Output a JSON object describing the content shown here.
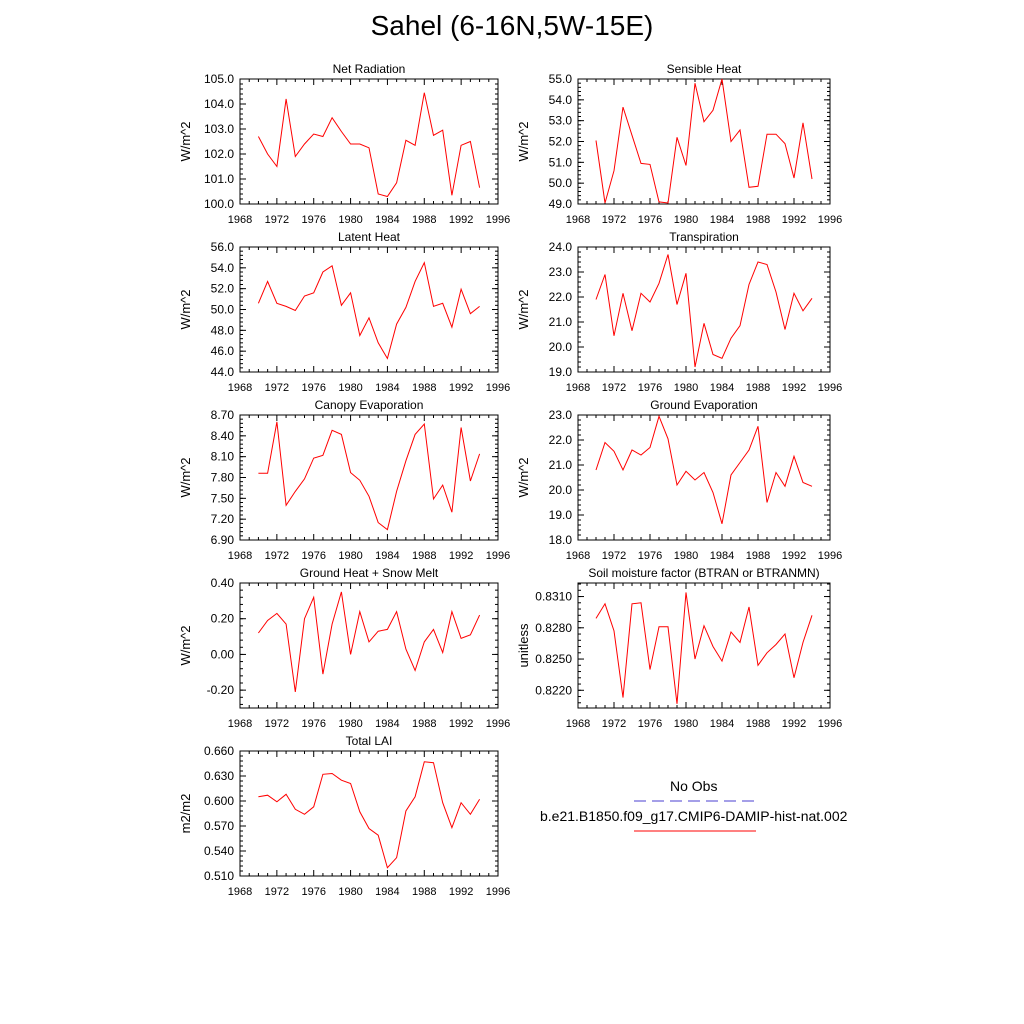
{
  "title": "Sahel (6-16N,5W-15E)",
  "colors": {
    "model": "#ff0000",
    "obs": "#4a3fd0",
    "axis": "#000000"
  },
  "chart_data": [
    {
      "type": "line",
      "title": "Net Radiation",
      "ylabel": "W/m^2",
      "xlim": [
        1968,
        1996
      ],
      "xticks": [
        "1968",
        "1972",
        "1976",
        "1980",
        "1984",
        "1988",
        "1992",
        "1996"
      ],
      "ylim": [
        100.0,
        105.0
      ],
      "yticks": [
        "100.0",
        "101.0",
        "102.0",
        "103.0",
        "104.0",
        "105.0"
      ],
      "x": [
        1970,
        1971,
        1972,
        1973,
        1974,
        1975,
        1976,
        1977,
        1978,
        1979,
        1980,
        1981,
        1982,
        1983,
        1984,
        1985,
        1986,
        1987,
        1988,
        1989,
        1990,
        1991,
        1992,
        1993,
        1994
      ],
      "series": [
        {
          "values": [
            102.7,
            102.0,
            101.5,
            104.2,
            101.9,
            102.4,
            102.8,
            102.7,
            103.45,
            102.9,
            102.4,
            102.4,
            102.25,
            100.4,
            100.3,
            100.85,
            102.55,
            102.35,
            104.45,
            102.75,
            102.95,
            100.35,
            102.35,
            102.5,
            100.65
          ]
        }
      ]
    },
    {
      "type": "line",
      "title": "Sensible Heat",
      "ylabel": "W/m^2",
      "xlim": [
        1968,
        1996
      ],
      "xticks": [
        "1968",
        "1972",
        "1976",
        "1980",
        "1984",
        "1988",
        "1992",
        "1996"
      ],
      "ylim": [
        49.0,
        55.0
      ],
      "yticks": [
        "49.0",
        "50.0",
        "51.0",
        "52.0",
        "53.0",
        "54.0",
        "55.0"
      ],
      "x": [
        1970,
        1971,
        1972,
        1973,
        1974,
        1975,
        1976,
        1977,
        1978,
        1979,
        1980,
        1981,
        1982,
        1983,
        1984,
        1985,
        1986,
        1987,
        1988,
        1989,
        1990,
        1991,
        1992,
        1993,
        1994
      ],
      "series": [
        {
          "values": [
            52.05,
            49.05,
            50.6,
            53.65,
            52.3,
            50.95,
            50.9,
            49.1,
            49.05,
            52.2,
            50.85,
            54.8,
            52.95,
            53.5,
            55.0,
            52.0,
            52.55,
            49.8,
            49.85,
            52.35,
            52.35,
            51.9,
            50.25,
            52.9,
            50.2
          ]
        }
      ]
    },
    {
      "type": "line",
      "title": "Latent Heat",
      "ylabel": "W/m^2",
      "xlim": [
        1968,
        1996
      ],
      "xticks": [
        "1968",
        "1972",
        "1976",
        "1980",
        "1984",
        "1988",
        "1992",
        "1996"
      ],
      "ylim": [
        44.0,
        56.0
      ],
      "yticks": [
        "44.0",
        "46.0",
        "48.0",
        "50.0",
        "52.0",
        "54.0",
        "56.0"
      ],
      "x": [
        1970,
        1971,
        1972,
        1973,
        1974,
        1975,
        1976,
        1977,
        1978,
        1979,
        1980,
        1981,
        1982,
        1983,
        1984,
        1985,
        1986,
        1987,
        1988,
        1989,
        1990,
        1991,
        1992,
        1993,
        1994
      ],
      "series": [
        {
          "values": [
            50.6,
            52.7,
            50.6,
            50.3,
            49.9,
            51.3,
            51.6,
            53.6,
            54.2,
            50.4,
            51.6,
            47.5,
            49.2,
            46.8,
            45.3,
            48.6,
            50.2,
            52.7,
            54.5,
            50.3,
            50.6,
            48.3,
            51.95,
            49.6,
            50.3
          ]
        }
      ]
    },
    {
      "type": "line",
      "title": "Transpiration",
      "ylabel": "W/m^2",
      "xlim": [
        1968,
        1996
      ],
      "xticks": [
        "1968",
        "1972",
        "1976",
        "1980",
        "1984",
        "1988",
        "1992",
        "1996"
      ],
      "ylim": [
        19.0,
        24.0
      ],
      "yticks": [
        "19.0",
        "20.0",
        "21.0",
        "22.0",
        "23.0",
        "24.0"
      ],
      "x": [
        1970,
        1971,
        1972,
        1973,
        1974,
        1975,
        1976,
        1977,
        1978,
        1979,
        1980,
        1981,
        1982,
        1983,
        1984,
        1985,
        1986,
        1987,
        1988,
        1989,
        1990,
        1991,
        1992,
        1993,
        1994
      ],
      "series": [
        {
          "values": [
            21.9,
            22.9,
            20.45,
            22.15,
            20.65,
            22.15,
            21.8,
            22.55,
            23.7,
            21.7,
            22.95,
            19.2,
            20.95,
            19.7,
            19.55,
            20.35,
            20.85,
            22.5,
            23.4,
            23.3,
            22.2,
            20.7,
            22.15,
            21.45,
            21.95
          ]
        }
      ]
    },
    {
      "type": "line",
      "title": "Canopy Evaporation",
      "ylabel": "W/m^2",
      "xlim": [
        1968,
        1996
      ],
      "xticks": [
        "1968",
        "1972",
        "1976",
        "1980",
        "1984",
        "1988",
        "1992",
        "1996"
      ],
      "ylim": [
        6.9,
        8.7
      ],
      "yticks": [
        "6.90",
        "7.20",
        "7.50",
        "7.80",
        "8.10",
        "8.40",
        "8.70"
      ],
      "x": [
        1970,
        1971,
        1972,
        1973,
        1974,
        1975,
        1976,
        1977,
        1978,
        1979,
        1980,
        1981,
        1982,
        1983,
        1984,
        1985,
        1986,
        1987,
        1988,
        1989,
        1990,
        1991,
        1992,
        1993,
        1994
      ],
      "series": [
        {
          "values": [
            7.86,
            7.86,
            8.6,
            7.4,
            7.6,
            7.78,
            8.08,
            8.12,
            8.48,
            8.42,
            7.87,
            7.76,
            7.53,
            7.15,
            7.05,
            7.6,
            8.04,
            8.42,
            8.57,
            7.49,
            7.69,
            7.3,
            8.52,
            7.75,
            8.14
          ]
        }
      ]
    },
    {
      "type": "line",
      "title": "Ground Evaporation",
      "ylabel": "W/m^2",
      "xlim": [
        1968,
        1996
      ],
      "xticks": [
        "1968",
        "1972",
        "1976",
        "1980",
        "1984",
        "1988",
        "1992",
        "1996"
      ],
      "ylim": [
        18.0,
        23.0
      ],
      "yticks": [
        "18.0",
        "19.0",
        "20.0",
        "21.0",
        "22.0",
        "23.0"
      ],
      "x": [
        1970,
        1971,
        1972,
        1973,
        1974,
        1975,
        1976,
        1977,
        1978,
        1979,
        1980,
        1981,
        1982,
        1983,
        1984,
        1985,
        1986,
        1987,
        1988,
        1989,
        1990,
        1991,
        1992,
        1993,
        1994
      ],
      "series": [
        {
          "values": [
            20.8,
            21.9,
            21.55,
            20.8,
            21.6,
            21.4,
            21.7,
            22.95,
            22.05,
            20.2,
            20.75,
            20.4,
            20.7,
            19.9,
            18.65,
            20.6,
            21.1,
            21.6,
            22.55,
            19.5,
            20.7,
            20.15,
            21.35,
            20.3,
            20.15
          ]
        }
      ]
    },
    {
      "type": "line",
      "title": "Ground Heat + Snow Melt",
      "ylabel": "W/m^2",
      "xlim": [
        1968,
        1996
      ],
      "xticks": [
        "1968",
        "1972",
        "1976",
        "1980",
        "1984",
        "1988",
        "1992",
        "1996"
      ],
      "ylim": [
        -0.3,
        0.4
      ],
      "yticks": [
        "-0.20",
        "0.00",
        "0.20",
        "0.40"
      ],
      "ytick_values": [
        -0.2,
        0.0,
        0.2,
        0.4
      ],
      "x": [
        1970,
        1971,
        1972,
        1973,
        1974,
        1975,
        1976,
        1977,
        1978,
        1979,
        1980,
        1981,
        1982,
        1983,
        1984,
        1985,
        1986,
        1987,
        1988,
        1989,
        1990,
        1991,
        1992,
        1993,
        1994
      ],
      "series": [
        {
          "values": [
            0.12,
            0.19,
            0.23,
            0.17,
            -0.21,
            0.2,
            0.32,
            -0.11,
            0.17,
            0.35,
            0.0,
            0.24,
            0.07,
            0.13,
            0.14,
            0.24,
            0.03,
            -0.09,
            0.07,
            0.14,
            0.01,
            0.24,
            0.09,
            0.11,
            0.22
          ]
        }
      ]
    },
    {
      "type": "line",
      "title": "Soil moisture factor (BTRAN or BTRANMN)",
      "ylabel": "unitless",
      "xlim": [
        1968,
        1996
      ],
      "xticks": [
        "1968",
        "1972",
        "1976",
        "1980",
        "1984",
        "1988",
        "1992",
        "1996"
      ],
      "ylim": [
        0.8203,
        0.8323
      ],
      "yticks": [
        "0.8220",
        "0.8250",
        "0.8280",
        "0.8310"
      ],
      "ytick_values": [
        0.822,
        0.825,
        0.828,
        0.831
      ],
      "x": [
        1970,
        1971,
        1972,
        1973,
        1974,
        1975,
        1976,
        1977,
        1978,
        1979,
        1980,
        1981,
        1982,
        1983,
        1984,
        1985,
        1986,
        1987,
        1988,
        1989,
        1990,
        1991,
        1992,
        1993,
        1994
      ],
      "series": [
        {
          "values": [
            0.8289,
            0.8303,
            0.8277,
            0.8213,
            0.8303,
            0.8304,
            0.824,
            0.8281,
            0.8281,
            0.8207,
            0.8314,
            0.825,
            0.8282,
            0.8262,
            0.8248,
            0.8276,
            0.8266,
            0.83,
            0.8244,
            0.8256,
            0.8264,
            0.8274,
            0.8232,
            0.8266,
            0.8292
          ]
        }
      ]
    },
    {
      "type": "line",
      "title": "Total LAI",
      "ylabel": "m2/m2",
      "xlim": [
        1968,
        1996
      ],
      "xticks": [
        "1968",
        "1972",
        "1976",
        "1980",
        "1984",
        "1988",
        "1992",
        "1996"
      ],
      "ylim": [
        0.51,
        0.66
      ],
      "yticks": [
        "0.510",
        "0.540",
        "0.570",
        "0.600",
        "0.630",
        "0.660"
      ],
      "x": [
        1970,
        1971,
        1972,
        1973,
        1974,
        1975,
        1976,
        1977,
        1978,
        1979,
        1980,
        1981,
        1982,
        1983,
        1984,
        1985,
        1986,
        1987,
        1988,
        1989,
        1990,
        1991,
        1992,
        1993,
        1994
      ],
      "series": [
        {
          "values": [
            0.605,
            0.607,
            0.599,
            0.608,
            0.59,
            0.584,
            0.593,
            0.632,
            0.633,
            0.625,
            0.621,
            0.587,
            0.567,
            0.559,
            0.52,
            0.532,
            0.588,
            0.605,
            0.647,
            0.646,
            0.598,
            0.568,
            0.598,
            0.584,
            0.602
          ]
        }
      ]
    }
  ],
  "legend": {
    "obs_label": "No Obs",
    "model_label": "b.e21.B1850.f09_g17.CMIP6-DAMIP-hist-nat.002"
  }
}
